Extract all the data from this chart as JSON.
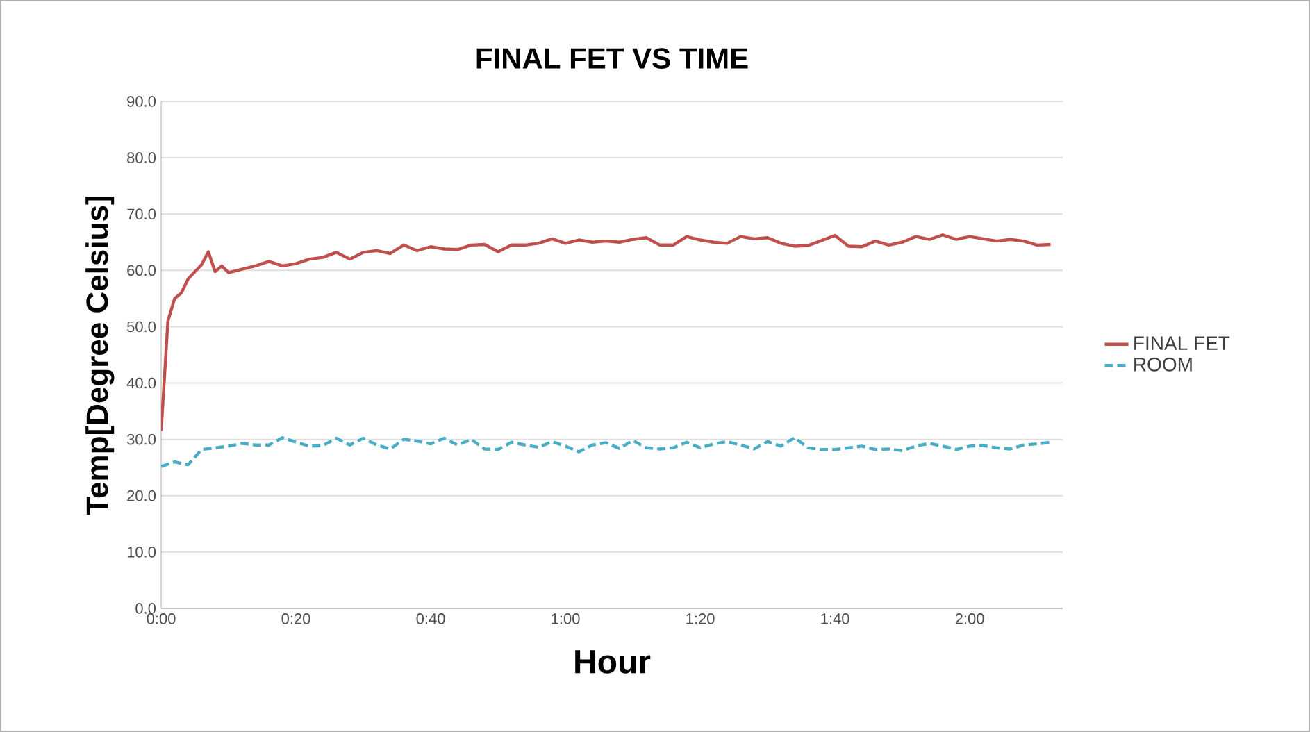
{
  "chart_data": {
    "type": "line",
    "title": "FINAL FET VS TIME",
    "xlabel": "Hour",
    "ylabel": "Temp[Degree Celsius]",
    "xlim": [
      0,
      2.23
    ],
    "xticks": [
      {
        "value": 0,
        "label": "0:00"
      },
      {
        "value": 0.3333,
        "label": "0:20"
      },
      {
        "value": 0.6667,
        "label": "0:40"
      },
      {
        "value": 1,
        "label": "1:00"
      },
      {
        "value": 1.3333,
        "label": "1:20"
      },
      {
        "value": 1.6667,
        "label": "1:40"
      },
      {
        "value": 2,
        "label": "2:00"
      }
    ],
    "ylim": [
      0,
      90
    ],
    "yticks": [
      {
        "value": 0,
        "label": "0.0"
      },
      {
        "value": 10,
        "label": "10.0"
      },
      {
        "value": 20,
        "label": "20.0"
      },
      {
        "value": 30,
        "label": "30.0"
      },
      {
        "value": 40,
        "label": "40.0"
      },
      {
        "value": 50,
        "label": "50.0"
      },
      {
        "value": 60,
        "label": "60.0"
      },
      {
        "value": 70,
        "label": "70.0"
      },
      {
        "value": 80,
        "label": "80.0"
      },
      {
        "value": 90,
        "label": "90.0"
      }
    ],
    "grid": "y",
    "legend": "right",
    "x": [
      0,
      0.0333,
      0.0667,
      0.1,
      0.1333,
      0.1667,
      0.2,
      0.2333,
      0.2667,
      0.3,
      0.3333,
      0.3667,
      0.4,
      0.4333,
      0.4667,
      0.5,
      0.5333,
      0.5667,
      0.6,
      0.6333,
      0.6667,
      0.7,
      0.7333,
      0.7667,
      0.8,
      0.8333,
      0.8667,
      0.9,
      0.9333,
      0.9667,
      1,
      1.0333,
      1.0667,
      1.1,
      1.1333,
      1.1667,
      1.2,
      1.2333,
      1.2667,
      1.3,
      1.3333,
      1.3667,
      1.4,
      1.4333,
      1.4667,
      1.5,
      1.5333,
      1.5667,
      1.6,
      1.6333,
      1.6667,
      1.7,
      1.7333,
      1.7667,
      1.8,
      1.8333,
      1.8667,
      1.9,
      1.9333,
      1.9667,
      2,
      2.0333,
      2.0667,
      2.1,
      2.1333,
      2.1667,
      2.2
    ],
    "series": [
      {
        "name": "FINAL FET",
        "color": "#c0504d",
        "line_style": "solid",
        "x": [
          0,
          0.0167,
          0.0333,
          0.05,
          0.0667,
          0.1,
          0.1167,
          0.1333,
          0.15,
          0.1667,
          0.2,
          0.2333,
          0.2667,
          0.3,
          0.3333,
          0.3667,
          0.4,
          0.4333,
          0.4667,
          0.5,
          0.5333,
          0.5667,
          0.6,
          0.6333,
          0.6667,
          0.7,
          0.7333,
          0.7667,
          0.8,
          0.8333,
          0.8667,
          0.9,
          0.9333,
          0.9667,
          1,
          1.0333,
          1.0667,
          1.1,
          1.1333,
          1.1667,
          1.2,
          1.2333,
          1.2667,
          1.3,
          1.3333,
          1.3667,
          1.4,
          1.4333,
          1.4667,
          1.5,
          1.5333,
          1.5667,
          1.6,
          1.6333,
          1.6667,
          1.7,
          1.7333,
          1.7667,
          1.8,
          1.8333,
          1.8667,
          1.9,
          1.9333,
          1.9667,
          2,
          2.0333,
          2.0667,
          2.1,
          2.1333,
          2.1667,
          2.2
        ],
        "values": [
          31.5,
          51,
          55,
          56,
          58.5,
          61,
          63.3,
          59.8,
          60.8,
          59.6,
          60.2,
          60.8,
          61.6,
          60.8,
          61.2,
          62.0,
          62.3,
          63.2,
          62.0,
          63.2,
          63.5,
          63.0,
          64.5,
          63.5,
          64.2,
          63.8,
          63.7,
          64.5,
          64.6,
          63.3,
          64.5,
          64.5,
          64.8,
          65.6,
          64.8,
          65.4,
          65.0,
          65.2,
          65.0,
          65.5,
          65.8,
          64.5,
          64.5,
          66.0,
          65.4,
          65.0,
          64.8,
          66.0,
          65.6,
          65.8,
          64.8,
          64.3,
          64.4,
          65.3,
          66.2,
          64.3,
          64.2,
          65.2,
          64.5,
          65.0,
          66.0,
          65.5,
          66.3,
          65.5,
          66.0,
          65.6,
          65.2,
          65.5,
          65.2,
          64.5,
          64.6
        ]
      },
      {
        "name": "ROOM",
        "color": "#4bacc6",
        "line_style": "dashed",
        "values": [
          25.2,
          26.0,
          25.5,
          28.2,
          28.5,
          28.8,
          29.3,
          29.0,
          29.0,
          30.3,
          29.5,
          28.8,
          28.9,
          30.2,
          29.0,
          30.2,
          29.0,
          28.3,
          30.0,
          29.7,
          29.2,
          30.2,
          29.0,
          30.0,
          28.3,
          28.2,
          29.5,
          29.0,
          28.6,
          29.6,
          28.8,
          27.8,
          29.0,
          29.4,
          28.4,
          29.8,
          28.5,
          28.3,
          28.5,
          29.5,
          28.5,
          29.2,
          29.6,
          29.0,
          28.3,
          29.6,
          28.8,
          30.3,
          28.5,
          28.2,
          28.2,
          28.5,
          28.8,
          28.2,
          28.3,
          28.0,
          28.8,
          29.3,
          28.8,
          28.2,
          28.8,
          28.9,
          28.5,
          28.3,
          29.0,
          29.2,
          29.5
        ]
      }
    ]
  }
}
